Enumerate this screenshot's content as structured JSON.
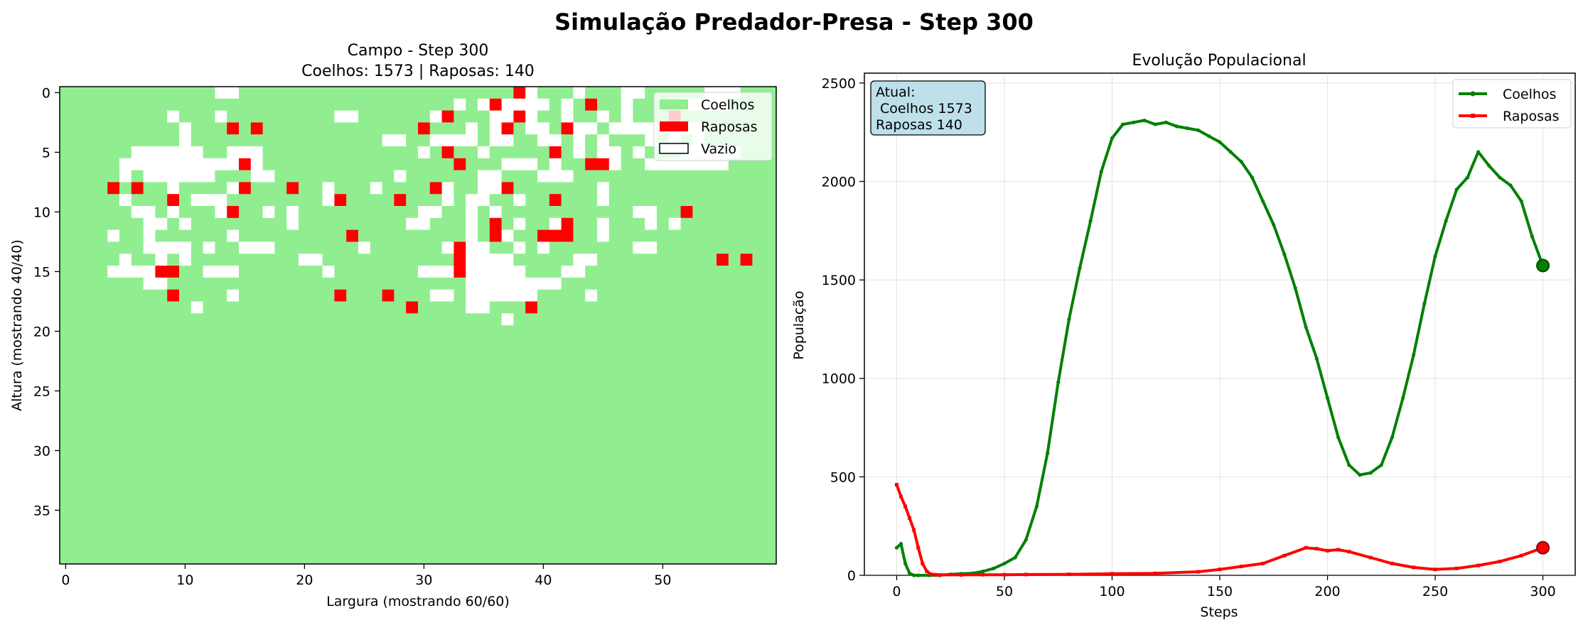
{
  "figure": {
    "suptitle": "Simulação Predador-Presa - Step 300"
  },
  "chart_data": [
    {
      "type": "heatmap",
      "title_line1": "Campo - Step 300",
      "title_line2": "Coelhos: 1573 |  Raposas: 140",
      "xlabel": "Largura (mostrando 60/60)",
      "ylabel": "Altura (mostrando 40/40)",
      "x_ticks": [
        0,
        10,
        20,
        30,
        40,
        50
      ],
      "y_ticks": [
        0,
        5,
        10,
        15,
        20,
        25,
        30,
        35
      ],
      "columns": 60,
      "rows": 40,
      "cell_codes": {
        "0": "Vazio",
        "1": "Coelhos",
        "2": "Raposas"
      },
      "colors": {
        "Coelhos": "#90EE90",
        "Raposas": "#FF0000",
        "Vazio": "#FFFFFF"
      },
      "legend": [
        "Coelhos",
        "Raposas",
        "Vazio"
      ],
      "legend_position": "upper right",
      "grid": [
        "111111111111100111111111111111111111112011101110011111000111",
        "111111111111111111111111111111111010200001012110111100001111",
        "111111111011101111111110011111102111002011011010111211111111",
        "111111111101112121111111111111211101021001200100000000111111",
        "111111111101111111111111111001100001001100101011101010111111",
        "111111000000110001111111111111012110111112101001011100000111",
        "111110000000000201111111111111111211100010112201100000001111",
        "111110100000011100111111111101111110011100011111111111111111",
        "111121211011110211121101110111120110021111111011111111111111",
        "111110111210001111111102111121110100110112111011111111111111",
        "111111001011102110101111111111001101011111111111001121111111",
        "111111100101111111101111111110011101210110211011101011111111",
        "111101101111110111111111211111111101201122211011111111111111",
        "111111100001011000111111101111110200110101111111001111111111",
        "111110110101111111110011111111111200001111100111111111121211",
        "111100002211000111111101111111000200000111001111111111111111",
        "111111100111111111111111111111111100000000111111111111111111",
        "111111111211110111111112111211100100000011110111111111111111",
        "111111111110111111111111111112111100111211111111111111111111",
        "111111111111111111111111111111111111101111111111111111111111",
        "111111111111111111111111111111111111111111111111111111111111",
        "111111111111111111111111111111111111111111111111111111111111",
        "111111111111111111111111111111111111111111111111111111111111",
        "111111111111111111111111111111111111111111111111111111111111",
        "111111111111111111111111111111111111111111111111111111111111",
        "111111111111111111111111111111111111111111111111111111111111",
        "111111111111111111111111111111111111111111111111111111111111",
        "111111111111111111111111111111111111111111111111111111111111",
        "111111111111111111111111111111111111111111111111111111111111",
        "111111111111111111111111111111111111111111111111111111111111",
        "111111111111111111111111111111111111111111111111111111111111",
        "111111111111111111111111111111111111111111111111111111111111",
        "111111111111111111111111111111111111111111111111111111111111",
        "111111111111111111111111111111111111111111111111111111111111",
        "111111111111111111111111111111111111111111111111111111111111",
        "111111111111111111111111111111111111111111111111111111111111",
        "111111111111111111111111111111111111111111111111111111111111",
        "111111111111111111111111111111111111111111111111111111111111",
        "111111111111111111111111111111111111111111111111111111111111",
        "111111111111111111111111111111111111111111111111111111111111"
      ]
    },
    {
      "type": "line",
      "title": "Evolução Populacional",
      "xlabel": "Steps",
      "ylabel": "População",
      "xlim": [
        -15,
        315
      ],
      "ylim": [
        0,
        2550
      ],
      "x_ticks": [
        0,
        50,
        100,
        150,
        200,
        250,
        300
      ],
      "y_ticks": [
        0,
        500,
        1000,
        1500,
        2000,
        2500
      ],
      "grid": true,
      "legend_position": "upper right",
      "annotation_lines": [
        "Atual:",
        " Coelhos 1573",
        "Raposas 140"
      ],
      "annotation_color": "#ADD8E6",
      "series": [
        {
          "name": "Coelhos",
          "color": "#008000",
          "marker": "circle",
          "final_point": [
            300,
            1573
          ],
          "x": [
            0,
            2,
            4,
            6,
            8,
            10,
            15,
            20,
            25,
            30,
            35,
            40,
            45,
            50,
            55,
            60,
            65,
            70,
            75,
            80,
            85,
            90,
            95,
            100,
            105,
            110,
            115,
            120,
            125,
            130,
            135,
            140,
            145,
            150,
            155,
            160,
            165,
            170,
            175,
            180,
            185,
            190,
            195,
            200,
            205,
            210,
            215,
            220,
            225,
            230,
            235,
            240,
            245,
            250,
            255,
            260,
            265,
            270,
            275,
            280,
            285,
            290,
            295,
            300
          ],
          "y": [
            140,
            160,
            60,
            10,
            0,
            0,
            0,
            0,
            5,
            8,
            10,
            20,
            35,
            60,
            90,
            180,
            350,
            620,
            980,
            1300,
            1560,
            1800,
            2050,
            2220,
            2290,
            2300,
            2310,
            2290,
            2300,
            2280,
            2270,
            2260,
            2230,
            2200,
            2150,
            2100,
            2020,
            1900,
            1780,
            1630,
            1460,
            1260,
            1100,
            900,
            700,
            560,
            510,
            520,
            560,
            700,
            900,
            1120,
            1380,
            1620,
            1800,
            1960,
            2020,
            2150,
            2080,
            2020,
            1980,
            1900,
            1720,
            1573
          ]
        },
        {
          "name": "Raposas",
          "color": "#FF0000",
          "marker": "square",
          "final_point": [
            300,
            140
          ],
          "x": [
            0,
            2,
            4,
            6,
            8,
            10,
            12,
            14,
            16,
            18,
            20,
            30,
            40,
            50,
            60,
            80,
            100,
            120,
            140,
            150,
            160,
            170,
            180,
            190,
            195,
            200,
            205,
            210,
            220,
            230,
            240,
            250,
            260,
            270,
            280,
            290,
            300
          ],
          "y": [
            460,
            400,
            350,
            290,
            230,
            140,
            60,
            20,
            5,
            3,
            2,
            2,
            3,
            3,
            4,
            5,
            8,
            10,
            18,
            30,
            45,
            60,
            100,
            140,
            135,
            125,
            130,
            120,
            90,
            60,
            40,
            30,
            35,
            50,
            70,
            100,
            140
          ]
        }
      ]
    }
  ]
}
